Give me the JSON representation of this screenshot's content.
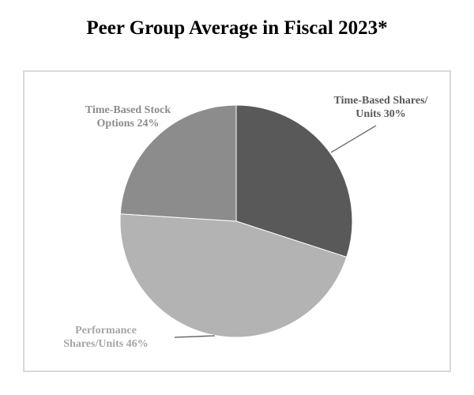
{
  "title": "Peer Group Average in Fiscal 2023*",
  "chart_data": {
    "type": "pie",
    "title": "Peer Group Average in Fiscal 2023*",
    "slices": [
      {
        "name": "time-based-shares-units",
        "label_lines": [
          "Time-Based Shares/",
          "Units 30%"
        ],
        "value": 30,
        "color": "#595959",
        "label_color": "#595959"
      },
      {
        "name": "performance-shares-units",
        "label_lines": [
          "Performance",
          "Shares/Units 46%"
        ],
        "value": 46,
        "color": "#b3b3b3",
        "label_color": "#a6a6a6"
      },
      {
        "name": "time-based-stock-options",
        "label_lines": [
          "Time-Based Stock",
          "Options 24%"
        ],
        "value": 24,
        "color": "#8c8c8c",
        "label_color": "#8c8c8c"
      }
    ],
    "start_angle_deg": 0,
    "direction": "clockwise",
    "leader_line_color": "#595959",
    "border_color": "#d9d9d9"
  }
}
